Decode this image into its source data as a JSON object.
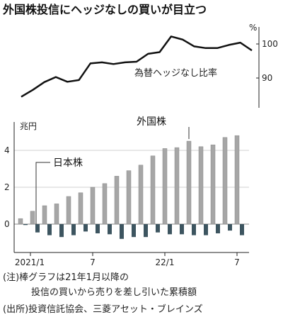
{
  "header": {
    "title": "外国株投信にヘッジなしの買いが目立つ"
  },
  "chart_data": [
    {
      "type": "line",
      "series_label": "為替ヘッジなし比率",
      "unit_label": "%",
      "y_ticks": [
        "100",
        "90"
      ],
      "ylim": [
        84,
        106
      ],
      "values": [
        84.5,
        86.5,
        88.8,
        90.3,
        88.9,
        89.4,
        94.3,
        94.6,
        94.1,
        94.6,
        94.8,
        97.1,
        97.6,
        102.2,
        101.3,
        99.3,
        98.8,
        98.8,
        99.7,
        100.4,
        98.1
      ]
    },
    {
      "type": "bar",
      "unit_label": "兆円",
      "y_ticks": [
        "4",
        "2",
        "0"
      ],
      "ylim": [
        -1.2,
        5.5
      ],
      "x_ticks": [
        "2021/1",
        "7",
        "22/1",
        "7"
      ],
      "categories": [
        "2020/12",
        "2021/1",
        "2021/2",
        "2021/3",
        "2021/4",
        "2021/5",
        "2021/6",
        "2021/7",
        "2021/8",
        "2021/9",
        "2021/10",
        "2021/11",
        "2021/12",
        "2022/1",
        "2022/2",
        "2022/3",
        "2022/4",
        "2022/5",
        "2022/6",
        "2022/7"
      ],
      "series": [
        {
          "name": "外国株",
          "color": "#a6a6a6",
          "values": [
            0.3,
            0.7,
            1.0,
            1.1,
            1.5,
            1.7,
            2.0,
            2.2,
            2.6,
            2.9,
            3.2,
            3.7,
            4.1,
            4.15,
            4.5,
            4.2,
            4.3,
            4.7,
            4.8,
            null
          ]
        },
        {
          "name": "日本株",
          "color": "#3d5560",
          "values": [
            -0.05,
            -0.45,
            -0.6,
            -0.7,
            -0.6,
            -0.4,
            -0.5,
            -0.55,
            -0.8,
            -0.7,
            -0.7,
            -0.45,
            -0.55,
            -0.55,
            -0.6,
            -0.6,
            -0.5,
            -0.35,
            -0.6,
            null
          ]
        }
      ]
    }
  ],
  "notes": [
    "(注)棒グラフは21年1月以降の",
    "投信の買いから売りを差し引いた累積額",
    "(出所)投資信託協会、三菱アセット・ブレインズ"
  ]
}
